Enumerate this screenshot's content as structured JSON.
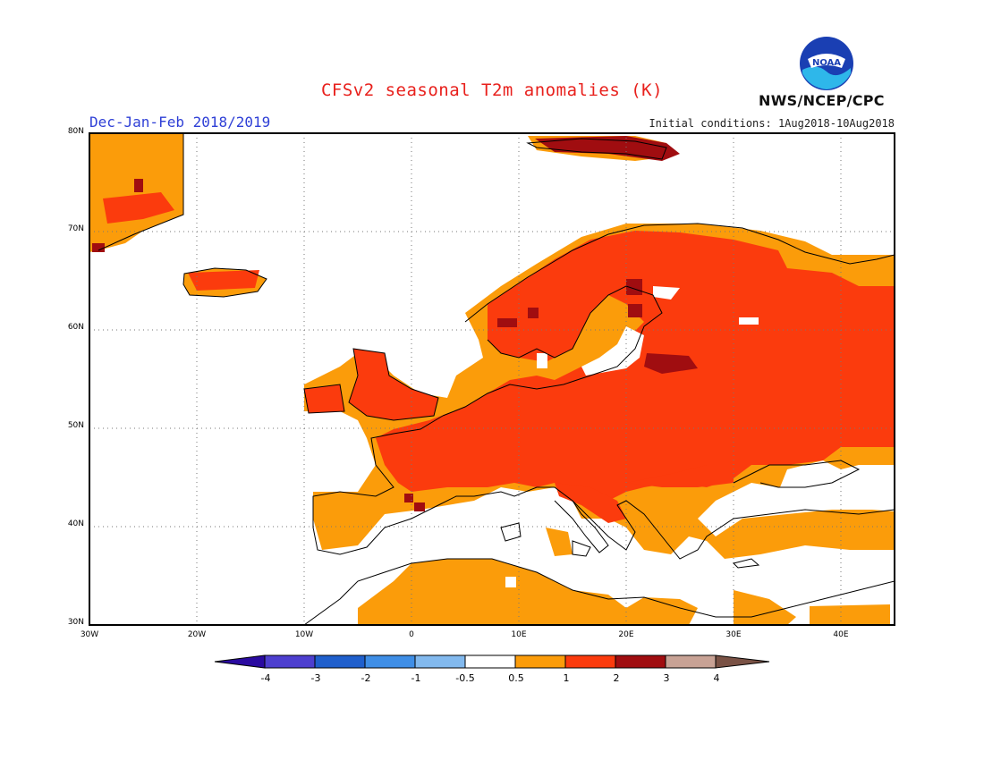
{
  "title": "CFSv2 seasonal T2m anomalies (K)",
  "season": "Dec-Jan-Feb 2018/2019",
  "initial_conditions": "Initial conditions: 1Aug2018-10Aug2018",
  "agency": "NWS/NCEP/CPC",
  "logo_text": "NOAA",
  "lat_ticks": [
    "30N",
    "40N",
    "50N",
    "60N",
    "70N",
    "80N"
  ],
  "lon_ticks": [
    "30W",
    "20W",
    "10W",
    "0",
    "10E",
    "20E",
    "30E",
    "40E"
  ],
  "colorbar": {
    "labels": [
      "-4",
      "-3",
      "-2",
      "-1",
      "-0.5",
      "0.5",
      "1",
      "2",
      "3",
      "4"
    ],
    "colors": [
      "#2a0aa0",
      "#4d3fcf",
      "#1f5fcc",
      "#3f8ee6",
      "#82b9ee",
      "#ffffff",
      "#fb9c0a",
      "#fb3b0d",
      "#a00d10",
      "#c8a295",
      "#7a5245"
    ]
  }
}
